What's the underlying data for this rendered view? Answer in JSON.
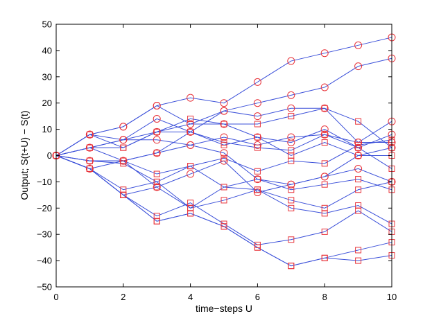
{
  "chart_data": {
    "type": "line",
    "title": "",
    "xlabel": "time−steps U",
    "ylabel": "Output; S(t+U) − S(t)",
    "xlim": [
      0,
      10
    ],
    "ylim": [
      -50,
      50
    ],
    "xticks": [
      "0",
      "2",
      "4",
      "6",
      "8",
      "10"
    ],
    "yticks": [
      "−50",
      "−40",
      "−30",
      "−20",
      "−10",
      "0",
      "10",
      "20",
      "30",
      "40",
      "50"
    ],
    "x_tick_values": [
      0,
      2,
      4,
      6,
      8,
      10
    ],
    "y_tick_values": [
      -50,
      -40,
      -30,
      -20,
      -10,
      0,
      10,
      20,
      30,
      40,
      50
    ],
    "grid": false,
    "line_color": "#3a4fd9",
    "marker_color": "#e8333a",
    "x": [
      0,
      1,
      2,
      3,
      4,
      5,
      6,
      7,
      8,
      9,
      10
    ],
    "series": [
      {
        "marker": "circle",
        "values": [
          0,
          8,
          11,
          19,
          22,
          20,
          28,
          36,
          39,
          42,
          45
        ]
      },
      {
        "marker": "circle",
        "values": [
          0,
          8,
          11,
          19,
          12,
          17,
          20,
          23,
          26,
          34,
          37
        ]
      },
      {
        "marker": "circle",
        "values": [
          0,
          8,
          6,
          14,
          9,
          17,
          15,
          18,
          18,
          5,
          13
        ]
      },
      {
        "marker": "square",
        "values": [
          0,
          8,
          3,
          9,
          14,
          12,
          12,
          15,
          18,
          13,
          3
        ]
      },
      {
        "marker": "circle",
        "values": [
          0,
          3,
          6,
          9,
          12,
          12,
          7,
          5,
          10,
          3,
          8
        ]
      },
      {
        "marker": "circle",
        "values": [
          0,
          3,
          6,
          6,
          4,
          7,
          4,
          7,
          8,
          5,
          5
        ]
      },
      {
        "marker": "square",
        "values": [
          0,
          3,
          3,
          9,
          9,
          5,
          3,
          2,
          8,
          3,
          -5
        ]
      },
      {
        "marker": "square",
        "values": [
          0,
          3,
          -2,
          1,
          9,
          4,
          7,
          0,
          5,
          0,
          0
        ]
      },
      {
        "marker": "circle",
        "values": [
          0,
          -2,
          -2,
          1,
          4,
          1,
          -9,
          -11,
          -8,
          0,
          3
        ]
      },
      {
        "marker": "square",
        "values": [
          0,
          -2,
          -2,
          -7,
          -4,
          -1,
          -6,
          -2,
          -3,
          4,
          6
        ]
      },
      {
        "marker": "square",
        "values": [
          0,
          -2,
          -3,
          -10,
          -4,
          -12,
          -9,
          -13,
          -11,
          -9,
          -13
        ]
      },
      {
        "marker": "circle",
        "values": [
          0,
          -5,
          -2,
          -12,
          -7,
          -2,
          -14,
          -11,
          -8,
          -5,
          -10
        ]
      },
      {
        "marker": "square",
        "values": [
          0,
          -5,
          -13,
          -10,
          -20,
          -17,
          -13,
          -17,
          -20,
          -13,
          -10
        ]
      },
      {
        "marker": "square",
        "values": [
          0,
          -5,
          -15,
          -12,
          -20,
          -12,
          -13,
          -20,
          -22,
          -19,
          -26
        ]
      },
      {
        "marker": "square",
        "values": [
          0,
          -5,
          -15,
          -23,
          -18,
          -26,
          -34,
          -32,
          -29,
          -21,
          -29
        ]
      },
      {
        "marker": "square",
        "values": [
          0,
          -5,
          -15,
          -25,
          -22,
          -27,
          -35,
          -42,
          -39,
          -36,
          -33
        ]
      },
      {
        "marker": "square",
        "values": [
          0,
          -5,
          -15,
          -25,
          -22,
          -27,
          -35,
          -42,
          -39,
          -40,
          -38
        ]
      }
    ]
  }
}
